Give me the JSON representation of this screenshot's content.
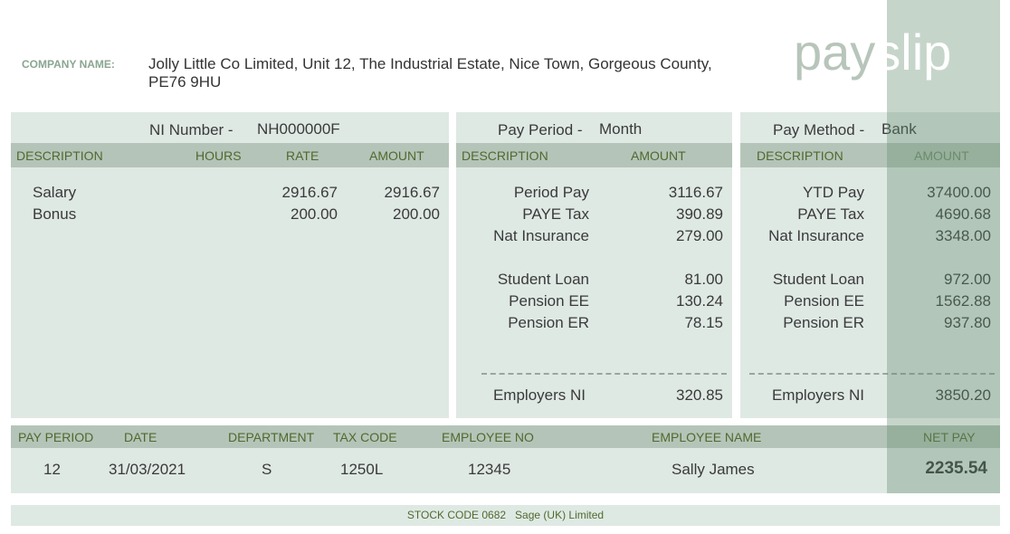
{
  "company": {
    "label": "COMPANY NAME:",
    "line1": "Jolly Little Co Limited, Unit 12, The Industrial Estate, Nice Town, Gorgeous County,",
    "line2": "PE76 9HU"
  },
  "title": {
    "part1": "pay",
    "part2": "slip"
  },
  "left": {
    "ni_label": "NI Number -",
    "ni_value": "NH000000F",
    "headers": [
      "DESCRIPTION",
      "HOURS",
      "RATE",
      "AMOUNT"
    ],
    "rows": [
      {
        "desc": "Salary",
        "hours": "",
        "rate": "2916.67",
        "amount": "2916.67"
      },
      {
        "desc": "Bonus",
        "hours": "",
        "rate": "200.00",
        "amount": "200.00"
      }
    ]
  },
  "middle": {
    "period_label": "Pay Period -",
    "period_value": "Month",
    "headers": [
      "DESCRIPTION",
      "AMOUNT"
    ],
    "rows": [
      {
        "desc": "Period Pay",
        "amount": "3116.67"
      },
      {
        "desc": "PAYE Tax",
        "amount": "390.89"
      },
      {
        "desc": "Nat Insurance",
        "amount": "279.00"
      },
      {
        "desc": "Student Loan",
        "amount": "81.00"
      },
      {
        "desc": "Pension EE",
        "amount": "130.24"
      },
      {
        "desc": "Pension ER",
        "amount": "78.15"
      }
    ],
    "total": {
      "desc": "Employers NI",
      "amount": "320.85"
    }
  },
  "right": {
    "method_label": "Pay Method -",
    "method_value": "Bank",
    "headers": [
      "DESCRIPTION",
      "AMOUNT"
    ],
    "rows": [
      {
        "desc": "YTD Pay",
        "amount": "37400.00"
      },
      {
        "desc": "PAYE Tax",
        "amount": "4690.68"
      },
      {
        "desc": "Nat Insurance",
        "amount": "3348.00"
      },
      {
        "desc": "Student Loan",
        "amount": "972.00"
      },
      {
        "desc": "Pension EE",
        "amount": "1562.88"
      },
      {
        "desc": "Pension ER",
        "amount": "937.80"
      }
    ],
    "total": {
      "desc": "Employers NI",
      "amount": "3850.20"
    }
  },
  "summary": {
    "headers": [
      "PAY PERIOD",
      "DATE",
      "DEPARTMENT",
      "TAX CODE",
      "EMPLOYEE NO",
      "EMPLOYEE NAME",
      "NET PAY"
    ],
    "values": [
      "12",
      "31/03/2021",
      "S",
      "1250L",
      "12345",
      "Sally James",
      "2235.54"
    ]
  },
  "footer": {
    "text": "STOCK CODE 0682   Sage (UK) Limited"
  },
  "colors": {
    "panel": "#dfe9e4",
    "header": "#b5c4b8",
    "header_text": "#4f6a2e",
    "accent_label": "#8aa690"
  }
}
